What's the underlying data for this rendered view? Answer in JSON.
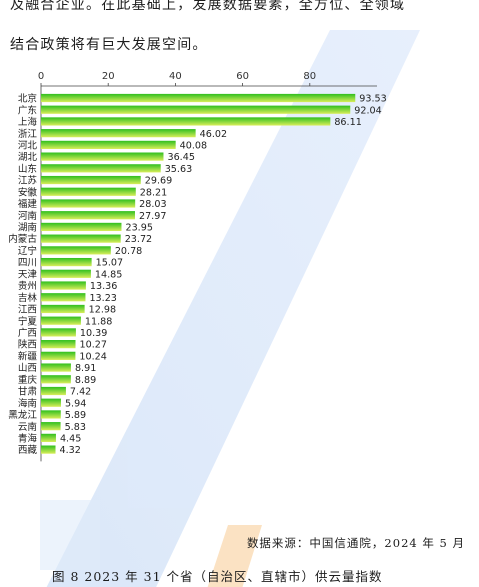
{
  "body": {
    "line1": "及融合企业。在此基础上，发展数据要素，全方位、全领域",
    "line2": "结合政策将有巨大发展空间。"
  },
  "source": "数据来源：中国信通院，2024 年 5 月",
  "caption": "图 8 2023 年 31 个省（自治区、直辖市）供云量指数",
  "chart_data": {
    "type": "bar",
    "orientation": "horizontal",
    "title": "",
    "xlabel": "",
    "ylabel": "",
    "xlim": [
      0,
      100
    ],
    "x_ticks": [
      0,
      20,
      40,
      60,
      80
    ],
    "axis_position": "top",
    "grid": false,
    "bar_color_gradient": [
      "#2fbf1f",
      "#d9ee5a"
    ],
    "categories": [
      "北京",
      "广东",
      "上海",
      "浙江",
      "河北",
      "湖北",
      "山东",
      "江苏",
      "安徽",
      "福建",
      "河南",
      "湖南",
      "内蒙古",
      "辽宁",
      "四川",
      "天津",
      "贵州",
      "吉林",
      "江西",
      "宁夏",
      "广西",
      "陕西",
      "新疆",
      "山西",
      "重庆",
      "甘肃",
      "海南",
      "黑龙江",
      "云南",
      "青海",
      "西藏"
    ],
    "values": [
      93.53,
      92.04,
      86.11,
      46.02,
      40.08,
      36.45,
      35.63,
      29.69,
      28.21,
      28.03,
      27.97,
      23.95,
      23.72,
      20.78,
      15.07,
      14.85,
      13.36,
      13.23,
      12.98,
      11.88,
      10.39,
      10.27,
      10.24,
      8.91,
      8.89,
      7.42,
      5.94,
      5.89,
      5.83,
      4.45,
      4.32
    ],
    "value_labels": [
      "93.53",
      "92.04",
      "86.11",
      "46.02",
      "40.08",
      "36.45",
      "35.63",
      "29.69",
      "28.21",
      "28.03",
      "27.97",
      "23.95",
      "23.72",
      "20.78",
      "15.07",
      "14.85",
      "13.36",
      "13.23",
      "12.98",
      "11.88",
      "10.39",
      "10.27",
      "10.24",
      "8.91",
      "8.89",
      "7.42",
      "5.94",
      "5.89",
      "5.83",
      "4.45",
      "4.32"
    ]
  }
}
